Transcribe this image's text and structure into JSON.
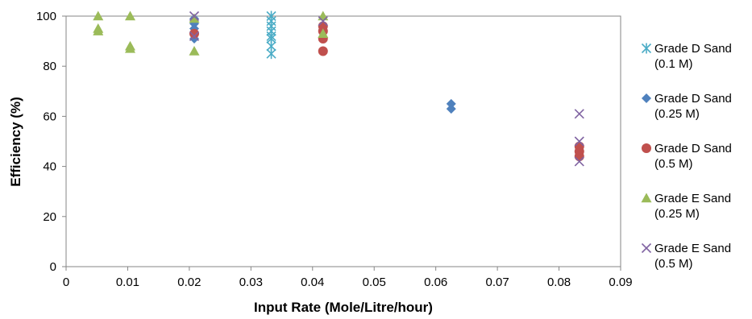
{
  "chart_data": {
    "type": "scatter",
    "title": "",
    "xlabel": "Input Rate (Mole/Litre/hour)",
    "ylabel": "Efficiency (%)",
    "xlim": [
      0,
      0.09
    ],
    "ylim": [
      0,
      100
    ],
    "x_ticks": [
      "0",
      "0.01",
      "0.02",
      "0.03",
      "0.04",
      "0.05",
      "0.06",
      "0.07",
      "0.08",
      "0.09"
    ],
    "y_ticks": [
      "0",
      "20",
      "40",
      "60",
      "80",
      "100"
    ],
    "grid": false,
    "legend_position": "right",
    "series": [
      {
        "name_lines": [
          "Grade D Sand",
          "(0.1 M)"
        ],
        "marker": "asterisk",
        "color": "#4bacc6",
        "points": [
          [
            0.0333,
            100
          ],
          [
            0.0333,
            98
          ],
          [
            0.0333,
            96
          ],
          [
            0.0333,
            94
          ],
          [
            0.0333,
            92
          ],
          [
            0.0333,
            91
          ],
          [
            0.0333,
            88
          ],
          [
            0.0333,
            85
          ]
        ]
      },
      {
        "name_lines": [
          "Grade D Sand",
          "(0.25 M)"
        ],
        "marker": "diamond",
        "color": "#4f81bd",
        "points": [
          [
            0.0208,
            99
          ],
          [
            0.0208,
            97
          ],
          [
            0.0208,
            95
          ],
          [
            0.0208,
            93
          ],
          [
            0.0208,
            91
          ],
          [
            0.0625,
            65
          ],
          [
            0.0625,
            63
          ]
        ]
      },
      {
        "name_lines": [
          "Grade D Sand",
          "(0.5 M)"
        ],
        "marker": "circle",
        "color": "#c0504d",
        "points": [
          [
            0.0208,
            93
          ],
          [
            0.0417,
            96
          ],
          [
            0.0417,
            94
          ],
          [
            0.0417,
            91
          ],
          [
            0.0417,
            86
          ],
          [
            0.0833,
            48
          ],
          [
            0.0833,
            46
          ],
          [
            0.0833,
            44
          ]
        ]
      },
      {
        "name_lines": [
          "Grade E Sand",
          "(0.25 M)"
        ],
        "marker": "triangle",
        "color": "#9bbb59",
        "points": [
          [
            0.0052,
            100
          ],
          [
            0.0052,
            95
          ],
          [
            0.0052,
            94
          ],
          [
            0.0104,
            100
          ],
          [
            0.0104,
            88
          ],
          [
            0.0104,
            87
          ],
          [
            0.0208,
            99
          ],
          [
            0.0208,
            86
          ],
          [
            0.0417,
            100
          ],
          [
            0.0417,
            93
          ]
        ]
      },
      {
        "name_lines": [
          "Grade E Sand",
          "(0.5 M)"
        ],
        "marker": "cross",
        "color": "#8064a2",
        "points": [
          [
            0.0208,
            100
          ],
          [
            0.0208,
            92
          ],
          [
            0.0417,
            98
          ],
          [
            0.0833,
            61
          ],
          [
            0.0833,
            50
          ],
          [
            0.0833,
            42
          ]
        ]
      }
    ]
  }
}
